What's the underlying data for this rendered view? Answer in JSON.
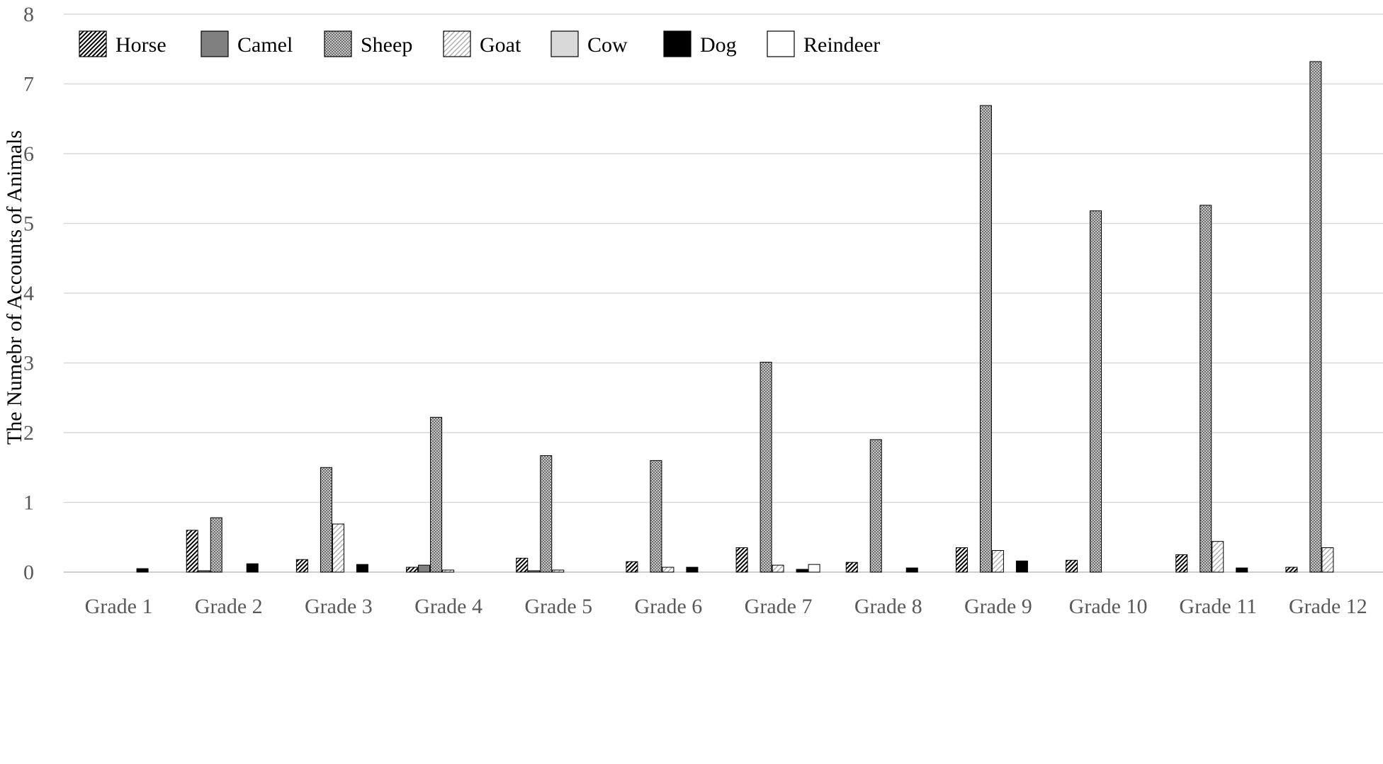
{
  "chart_data": {
    "type": "bar",
    "title": "",
    "xlabel": "",
    "ylabel": "The Numebr of Accounts of Animals",
    "ylim": [
      0,
      8
    ],
    "yticks": [
      "0",
      "1",
      "2",
      "3",
      "4",
      "5",
      "6",
      "7",
      "8"
    ],
    "grid": true,
    "legend_position": "top-left",
    "categories": [
      "Grade 1",
      "Grade 2",
      "Grade 3",
      "Grade 4",
      "Grade 5",
      "Grade 6",
      "Grade 7",
      "Grade 8",
      "Grade 9",
      "Grade 10",
      "Grade 11",
      "Grade 12"
    ],
    "series": [
      {
        "name": "Horse",
        "pattern": "diagonal-dense",
        "color": "#000000",
        "values": [
          0,
          0.6,
          0.18,
          0.07,
          0.2,
          0.15,
          0.35,
          0.14,
          0.35,
          0.17,
          0.25,
          0.07
        ]
      },
      {
        "name": "Camel",
        "pattern": "solid",
        "color": "#808080",
        "values": [
          0,
          0.02,
          0,
          0.1,
          0.02,
          0,
          0,
          0,
          0,
          0,
          0,
          0
        ]
      },
      {
        "name": "Sheep",
        "pattern": "dotted-grid",
        "color": "#a6a6a6",
        "values": [
          0,
          0.78,
          1.5,
          2.22,
          1.67,
          1.6,
          3.01,
          1.9,
          6.69,
          5.18,
          5.26,
          7.32
        ]
      },
      {
        "name": "Goat",
        "pattern": "diagonal-light",
        "color": "#c0c0c0",
        "values": [
          0,
          0,
          0.69,
          0.03,
          0.03,
          0.07,
          0.1,
          0,
          0.31,
          0,
          0.44,
          0.35
        ]
      },
      {
        "name": "Cow",
        "pattern": "solid",
        "color": "#d9d9d9",
        "values": [
          0,
          0,
          0,
          0,
          0,
          0,
          0,
          0,
          0,
          0,
          0,
          0
        ]
      },
      {
        "name": "Dog",
        "pattern": "solid",
        "color": "#000000",
        "values": [
          0.05,
          0.12,
          0.11,
          0,
          0,
          0.07,
          0.04,
          0.06,
          0.16,
          0,
          0.06,
          0
        ]
      },
      {
        "name": "Reindeer",
        "pattern": "solid",
        "color": "#ffffff",
        "values": [
          0,
          0,
          0,
          0,
          0,
          0,
          0.11,
          0,
          0,
          0,
          0,
          0
        ]
      }
    ]
  }
}
